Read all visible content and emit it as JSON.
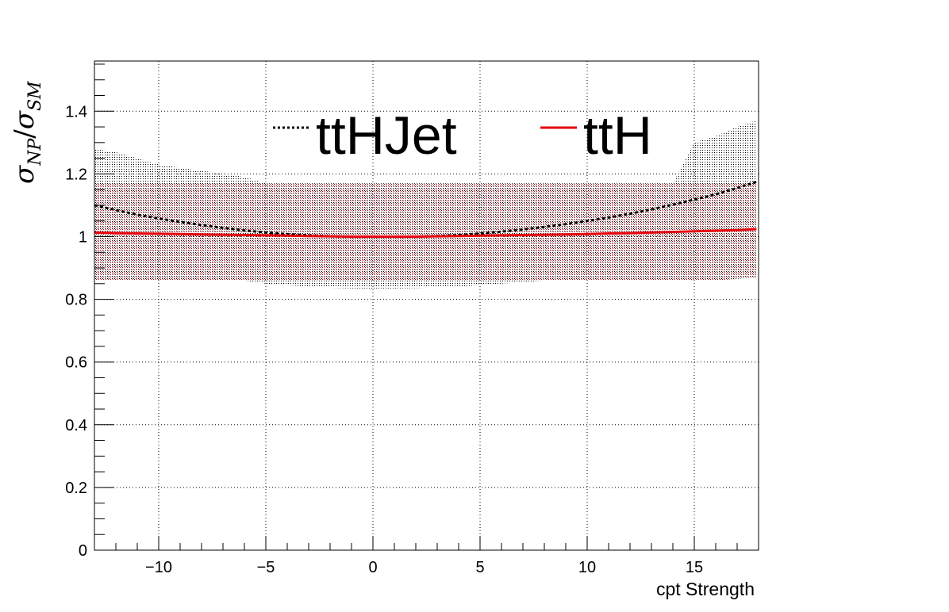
{
  "chart_data": {
    "type": "line",
    "xlabel": "cpt Strength",
    "ylabel": {
      "main": "σ",
      "sub1": "NP",
      "slash": "/",
      "main2": "σ",
      "sub2": "SM"
    },
    "xlim": [
      -13,
      18
    ],
    "ylim": [
      0,
      1.56
    ],
    "x_ticks": [
      -10,
      -5,
      0,
      5,
      10,
      15
    ],
    "x_tick_labels": [
      "−10",
      "−5",
      "0",
      "5",
      "10",
      "15"
    ],
    "y_ticks": [
      0,
      0.2,
      0.4,
      0.6,
      0.8,
      1,
      1.2,
      1.4
    ],
    "y_tick_labels": [
      "0",
      "0.2",
      "0.4",
      "0.6",
      "0.8",
      "1",
      "1.2",
      "1.4"
    ],
    "grid": true,
    "legend_position": "top",
    "series": [
      {
        "name": "ttHJet",
        "style": "dotted",
        "color": "#000000",
        "x": [
          -13,
          -12,
          -11,
          -10,
          -9,
          -8,
          -7,
          -6,
          -5,
          -4,
          -3,
          -2,
          -1,
          0,
          1,
          2,
          3,
          4,
          5,
          6,
          7,
          8,
          9,
          10,
          11,
          12,
          13,
          14,
          15,
          16,
          17,
          17.9
        ],
        "y": [
          1.1,
          1.085,
          1.07,
          1.058,
          1.047,
          1.037,
          1.028,
          1.02,
          1.013,
          1.008,
          1.004,
          1.001,
          1.0,
          1.0,
          1.0,
          1.0,
          1.002,
          1.005,
          1.01,
          1.016,
          1.023,
          1.031,
          1.04,
          1.05,
          1.061,
          1.073,
          1.087,
          1.102,
          1.118,
          1.135,
          1.155,
          1.175
        ],
        "band_upper": [
          1.28,
          1.27,
          1.25,
          1.23,
          1.22,
          1.21,
          1.2,
          1.19,
          1.17,
          1.17,
          1.17,
          1.17,
          1.17,
          1.17,
          1.17,
          1.17,
          1.17,
          1.17,
          1.17,
          1.17,
          1.17,
          1.17,
          1.17,
          1.17,
          1.17,
          1.17,
          1.17,
          1.17,
          1.3,
          1.32,
          1.35,
          1.37
        ],
        "band_lower": [
          0.86,
          0.86,
          0.86,
          0.86,
          0.86,
          0.86,
          0.86,
          0.86,
          0.85,
          0.845,
          0.84,
          0.837,
          0.835,
          0.835,
          0.835,
          0.836,
          0.838,
          0.84,
          0.845,
          0.85,
          0.855,
          0.86,
          0.86,
          0.86,
          0.86,
          0.86,
          0.86,
          0.86,
          0.86,
          0.86,
          0.865,
          0.87
        ]
      },
      {
        "name": "ttH",
        "style": "solid",
        "color": "#e8000b",
        "x": [
          -13,
          -12,
          -11,
          -10,
          -9,
          -8,
          -7,
          -6,
          -5,
          -4,
          -3,
          -2,
          -1,
          0,
          1,
          2,
          3,
          4,
          5,
          6,
          7,
          8,
          9,
          10,
          11,
          12,
          13,
          14,
          15,
          16,
          17,
          17.9
        ],
        "y": [
          1.013,
          1.011,
          1.01,
          1.009,
          1.008,
          1.007,
          1.006,
          1.005,
          1.004,
          1.003,
          1.002,
          1.001,
          1.0,
          1.0,
          1.0,
          1.0,
          1.001,
          1.002,
          1.003,
          1.004,
          1.005,
          1.006,
          1.007,
          1.008,
          1.01,
          1.011,
          1.013,
          1.015,
          1.017,
          1.019,
          1.021,
          1.024
        ],
        "band_upper": [
          1.17,
          1.17,
          1.17,
          1.17,
          1.17,
          1.17,
          1.17,
          1.17,
          1.17,
          1.17,
          1.17,
          1.17,
          1.17,
          1.17,
          1.17,
          1.17,
          1.17,
          1.17,
          1.17,
          1.17,
          1.17,
          1.17,
          1.17,
          1.17,
          1.17,
          1.17,
          1.17,
          1.17,
          1.17,
          1.17,
          1.17,
          1.17
        ],
        "band_lower": [
          0.86,
          0.86,
          0.86,
          0.86,
          0.86,
          0.86,
          0.86,
          0.86,
          0.86,
          0.86,
          0.86,
          0.86,
          0.86,
          0.86,
          0.86,
          0.86,
          0.86,
          0.86,
          0.86,
          0.86,
          0.86,
          0.86,
          0.86,
          0.86,
          0.86,
          0.86,
          0.86,
          0.86,
          0.86,
          0.86,
          0.865,
          0.87
        ]
      }
    ]
  }
}
